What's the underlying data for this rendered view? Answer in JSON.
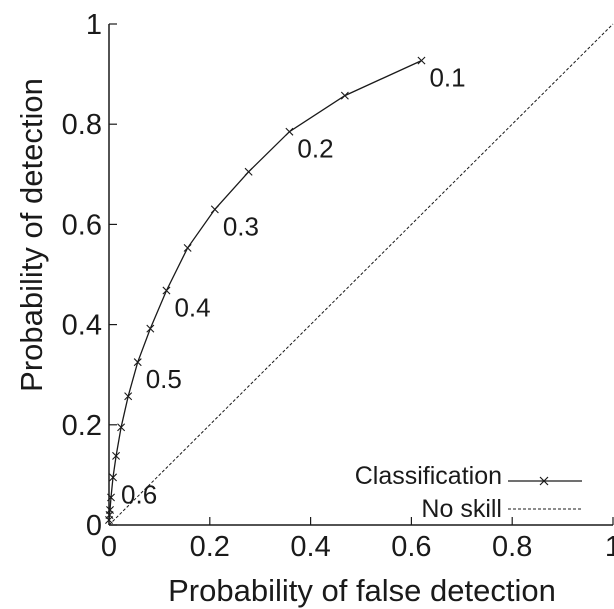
{
  "chart_data": {
    "type": "line",
    "title": "",
    "xlabel": "Probability of false detection",
    "ylabel": "Probability of detection",
    "xlim": [
      0,
      1
    ],
    "ylim": [
      0,
      1
    ],
    "grid": false,
    "legend_position": "bottom-right",
    "x_ticks": [
      "0",
      "0.2",
      "0.4",
      "0.6",
      "0.8",
      "1"
    ],
    "y_ticks": [
      "0",
      "0.2",
      "0.4",
      "0.6",
      "0.8",
      "1"
    ],
    "series": [
      {
        "name": "Classification",
        "style": "solid",
        "marker": "x",
        "color": "#1a1a1a",
        "x": [
          0.0,
          0.001,
          0.002,
          0.004,
          0.008,
          0.014,
          0.024,
          0.038,
          0.057,
          0.082,
          0.114,
          0.156,
          0.21,
          0.277,
          0.358,
          0.468,
          0.62
        ],
        "y": [
          0.01,
          0.02,
          0.03,
          0.055,
          0.095,
          0.138,
          0.195,
          0.257,
          0.325,
          0.392,
          0.468,
          0.553,
          0.63,
          0.705,
          0.785,
          0.857,
          0.927
        ]
      },
      {
        "name": "No skill",
        "style": "dashed",
        "marker": "none",
        "color": "#1a1a1a",
        "x": [
          0,
          1
        ],
        "y": [
          0,
          1
        ]
      }
    ],
    "threshold_labels": [
      {
        "text": "0.1",
        "x": 0.62,
        "y": 0.927
      },
      {
        "text": "0.2",
        "x": 0.358,
        "y": 0.785
      },
      {
        "text": "0.3",
        "x": 0.21,
        "y": 0.63
      },
      {
        "text": "0.4",
        "x": 0.114,
        "y": 0.468
      },
      {
        "text": "0.5",
        "x": 0.057,
        "y": 0.325
      },
      {
        "text": "0.6",
        "x": 0.008,
        "y": 0.095
      }
    ]
  }
}
